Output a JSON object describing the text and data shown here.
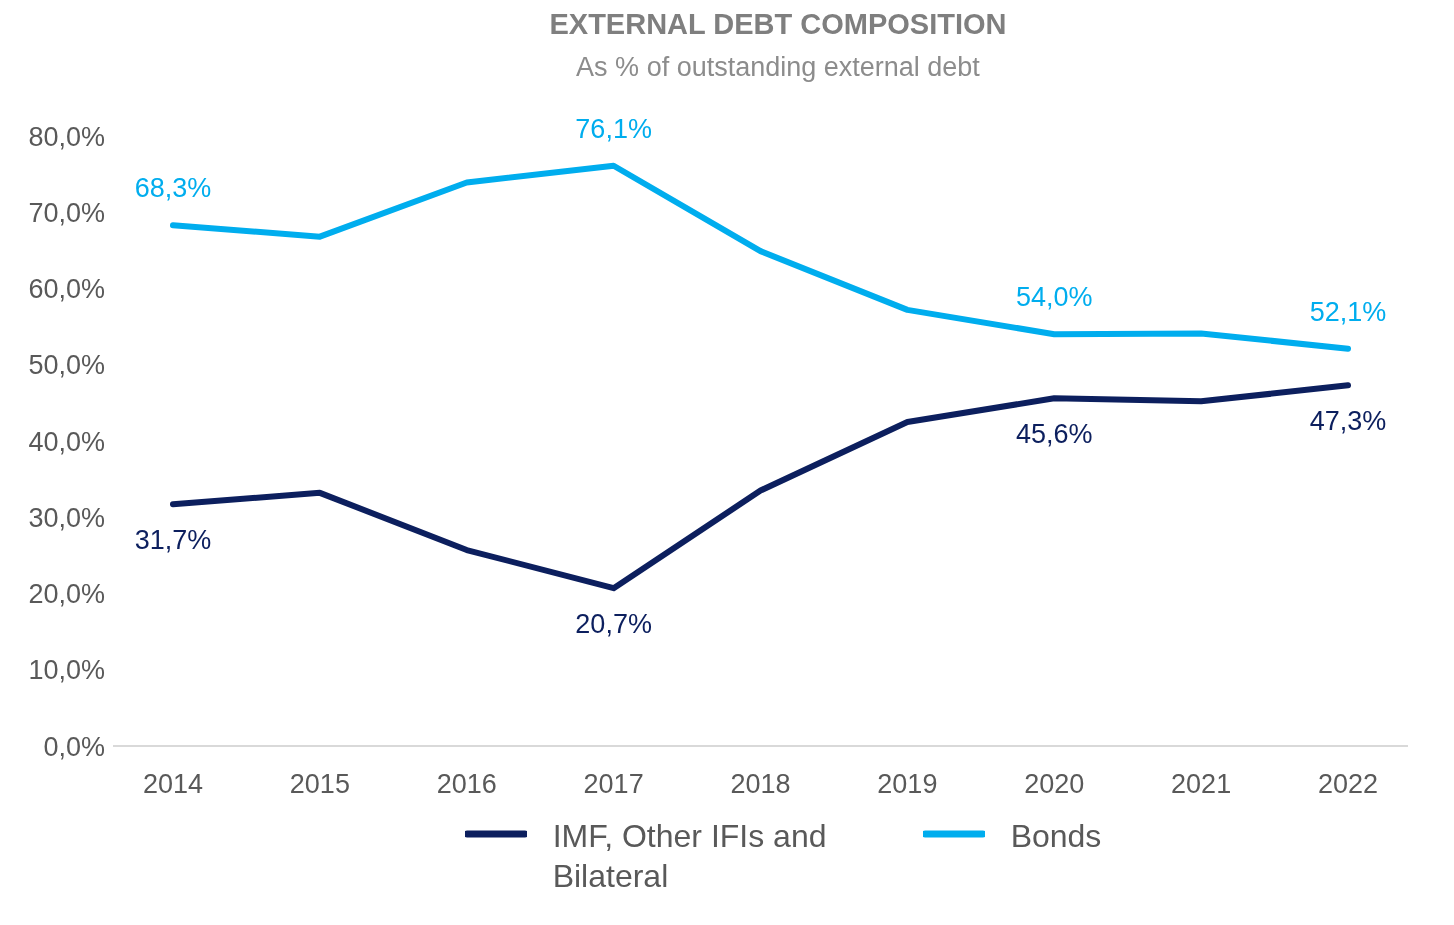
{
  "chart_data": {
    "type": "line",
    "title": "EXTERNAL DEBT COMPOSITION",
    "subtitle": "As % of outstanding external debt",
    "categories": [
      "2014",
      "2015",
      "2016",
      "2017",
      "2018",
      "2019",
      "2020",
      "2021",
      "2022"
    ],
    "series": [
      {
        "name": "IMF, Other IFIs and Bilateral",
        "color": "#0c1f5e",
        "values": [
          31.7,
          33.2,
          25.7,
          20.7,
          33.5,
          42.5,
          45.6,
          45.2,
          47.3
        ],
        "value_labels": [
          "31,7%",
          null,
          null,
          "20,7%",
          null,
          null,
          "45,6%",
          null,
          "47,3%"
        ]
      },
      {
        "name": "Bonds",
        "color": "#00adee",
        "values": [
          68.3,
          66.8,
          73.9,
          76.1,
          64.9,
          57.2,
          54.0,
          54.1,
          52.1
        ],
        "value_labels": [
          "68,3%",
          null,
          null,
          "76,1%",
          null,
          null,
          "54,0%",
          null,
          "52,1%"
        ]
      }
    ],
    "ylim": [
      0,
      80
    ],
    "yticks": [
      {
        "value": 0,
        "label": "0,0%"
      },
      {
        "value": 10,
        "label": "10,0%"
      },
      {
        "value": 20,
        "label": "20,0%"
      },
      {
        "value": 30,
        "label": "30,0%"
      },
      {
        "value": 40,
        "label": "40,0%"
      },
      {
        "value": 50,
        "label": "50,0%"
      },
      {
        "value": 60,
        "label": "60,0%"
      },
      {
        "value": 70,
        "label": "70,0%"
      },
      {
        "value": 80,
        "label": "80,0%"
      }
    ],
    "grid": false,
    "legend": "bottom",
    "marker": "none",
    "line_style": "solid"
  }
}
